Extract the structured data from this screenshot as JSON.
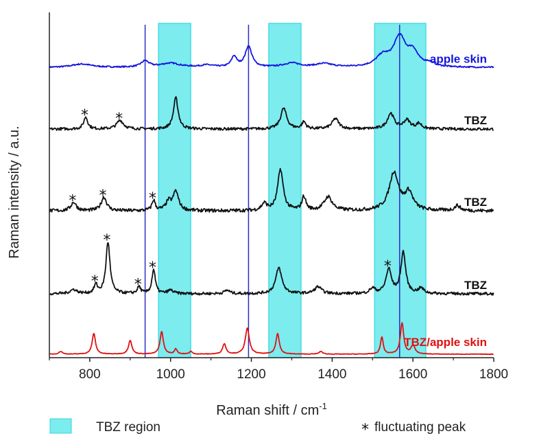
{
  "chart_data": {
    "type": "line",
    "xlabel": "Raman shift / cm",
    "xlabel_sup": "-1",
    "ylabel": "Raman intensity / a.u.",
    "xlim": [
      700,
      1800
    ],
    "ylim": [
      0,
      1
    ],
    "x_ticks": [
      800,
      1000,
      1200,
      1400,
      1600,
      1800
    ],
    "y_ticks_shown": false,
    "grid": false,
    "colors": {
      "apple": "#1515e0",
      "tbz": "#111111",
      "mix": "#e01010",
      "region_fill": "#7cecef",
      "region_stroke": "#2fd6dc",
      "vline": "#2a2ac8"
    },
    "tbz_regions": [
      [
        970,
        1050
      ],
      [
        1243,
        1323
      ],
      [
        1505,
        1632
      ]
    ],
    "vertical_lines": [
      937,
      1193,
      1567
    ],
    "series": [
      {
        "name": "apple skin",
        "color": "#1515e0",
        "baseline": 0.84,
        "noise": 0.002,
        "peaks": [
          [
            780,
            0.01,
            30
          ],
          [
            937,
            0.018,
            12
          ],
          [
            1000,
            0.012,
            30
          ],
          [
            1090,
            0.006,
            20
          ],
          [
            1157,
            0.03,
            8
          ],
          [
            1193,
            0.06,
            10
          ],
          [
            1300,
            0.012,
            25
          ],
          [
            1380,
            0.01,
            25
          ],
          [
            1525,
            0.03,
            20
          ],
          [
            1567,
            0.085,
            18
          ],
          [
            1600,
            0.04,
            15
          ],
          [
            1640,
            0.01,
            15
          ]
        ]
      },
      {
        "name": "TBZ",
        "color": "#111111",
        "baseline": 0.662,
        "noise": 0.004,
        "peaks": [
          [
            790,
            0.035,
            6
          ],
          [
            875,
            0.025,
            10
          ],
          [
            1013,
            0.09,
            7
          ],
          [
            1280,
            0.06,
            9
          ],
          [
            1330,
            0.02,
            6
          ],
          [
            1408,
            0.03,
            10
          ],
          [
            1545,
            0.045,
            10
          ],
          [
            1585,
            0.025,
            10
          ],
          [
            1615,
            0.015,
            8
          ]
        ]
      },
      {
        "name": "TBZ",
        "color": "#111111",
        "baseline": 0.425,
        "noise": 0.005,
        "peaks": [
          [
            760,
            0.025,
            8
          ],
          [
            835,
            0.04,
            8
          ],
          [
            958,
            0.03,
            5
          ],
          [
            995,
            0.025,
            8
          ],
          [
            1013,
            0.055,
            8
          ],
          [
            1232,
            0.02,
            8
          ],
          [
            1272,
            0.12,
            8
          ],
          [
            1330,
            0.04,
            6
          ],
          [
            1390,
            0.04,
            12
          ],
          [
            1553,
            0.11,
            14
          ],
          [
            1590,
            0.05,
            12
          ],
          [
            1710,
            0.015,
            8
          ]
        ]
      },
      {
        "name": "TBZ",
        "color": "#111111",
        "baseline": 0.185,
        "noise": 0.004,
        "peaks": [
          [
            760,
            0.012,
            10
          ],
          [
            815,
            0.025,
            5
          ],
          [
            845,
            0.15,
            6
          ],
          [
            922,
            0.02,
            5
          ],
          [
            958,
            0.07,
            5
          ],
          [
            1000,
            0.01,
            8
          ],
          [
            1140,
            0.01,
            8
          ],
          [
            1268,
            0.075,
            9
          ],
          [
            1365,
            0.02,
            10
          ],
          [
            1500,
            0.015,
            8
          ],
          [
            1540,
            0.07,
            8
          ],
          [
            1576,
            0.12,
            7
          ],
          [
            1620,
            0.015,
            8
          ]
        ]
      },
      {
        "name": "TBZ/apple skin",
        "color": "#e01010",
        "baseline": 0.01,
        "noise": 0.0008,
        "peaks": [
          [
            728,
            0.008,
            5
          ],
          [
            810,
            0.06,
            5
          ],
          [
            900,
            0.04,
            5
          ],
          [
            978,
            0.065,
            5
          ],
          [
            1013,
            0.015,
            4
          ],
          [
            1050,
            0.008,
            4
          ],
          [
            1133,
            0.03,
            5
          ],
          [
            1190,
            0.075,
            6
          ],
          [
            1265,
            0.06,
            5
          ],
          [
            1372,
            0.008,
            5
          ],
          [
            1523,
            0.05,
            4
          ],
          [
            1573,
            0.09,
            5
          ],
          [
            1600,
            0.025,
            6
          ]
        ]
      }
    ],
    "fluctuating_peaks": [
      {
        "x": 790,
        "series": 1
      },
      {
        "x": 875,
        "series": 1
      },
      {
        "x": 760,
        "series": 2
      },
      {
        "x": 835,
        "series": 2
      },
      {
        "x": 958,
        "series": 2
      },
      {
        "x": 815,
        "series": 3
      },
      {
        "x": 845,
        "series": 3
      },
      {
        "x": 922,
        "series": 3
      },
      {
        "x": 958,
        "series": 3
      },
      {
        "x": 1540,
        "series": 3
      }
    ],
    "legend": {
      "region": "TBZ region",
      "star": "*",
      "fluct": "fluctuating peak",
      "placement": "bottom"
    }
  }
}
